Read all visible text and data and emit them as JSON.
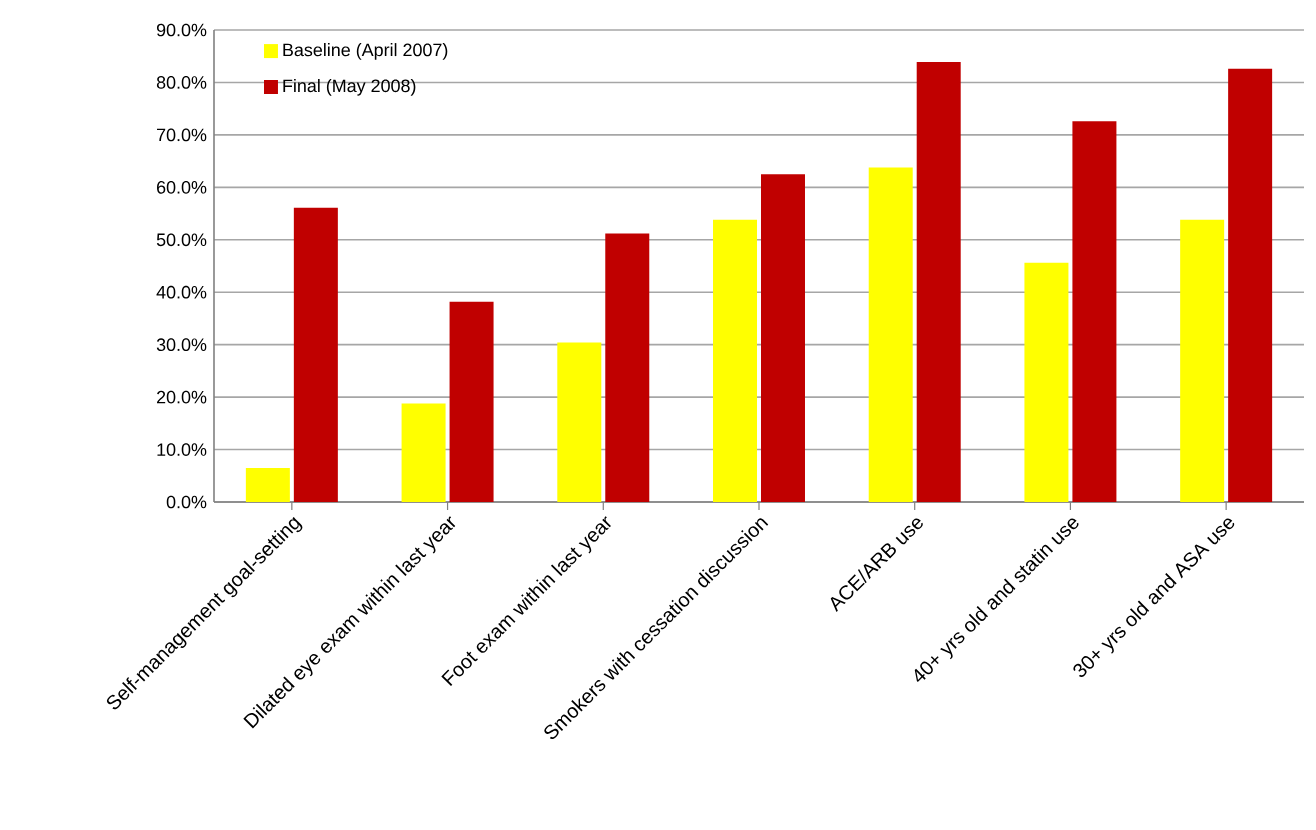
{
  "chart_data": {
    "type": "bar",
    "categories": [
      "Self-management goal-setting",
      "Dilated eye exam within last year",
      "Foot exam within last year",
      "Smokers with cessation discussion",
      "ACE/ARB use",
      "40+ yrs old and statin use",
      "30+ yrs old and ASA use"
    ],
    "series": [
      {
        "name": "Baseline (April 2007)",
        "color": "#ffff00",
        "values": [
          6.5,
          18.8,
          30.4,
          53.8,
          63.8,
          45.6,
          53.8
        ]
      },
      {
        "name": "Final (May 2008)",
        "color": "#c00000",
        "values": [
          56.1,
          38.2,
          51.2,
          62.5,
          83.9,
          72.6,
          82.6
        ]
      }
    ],
    "ylim": [
      0,
      90
    ],
    "yticks": [
      {
        "value": 0,
        "label": "0.0%"
      },
      {
        "value": 10,
        "label": "10.0%"
      },
      {
        "value": 20,
        "label": "20.0%"
      },
      {
        "value": 30,
        "label": "30.0%"
      },
      {
        "value": 40,
        "label": "40.0%"
      },
      {
        "value": 50,
        "label": "50.0%"
      },
      {
        "value": 60,
        "label": "60.0%"
      },
      {
        "value": 70,
        "label": "70.0%"
      },
      {
        "value": 80,
        "label": "80.0%"
      },
      {
        "value": 90,
        "label": "90.0%"
      }
    ],
    "grid": "y",
    "legend": "top left"
  }
}
